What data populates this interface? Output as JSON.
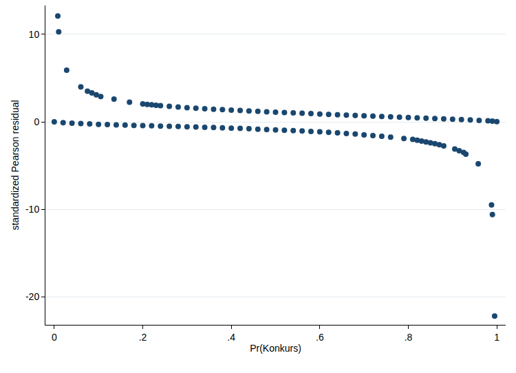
{
  "chart_data": {
    "type": "scatter",
    "xlabel": "Pr(Konkurs)",
    "ylabel": "standardized Pearson residual",
    "xlim": [
      -0.02,
      1.02
    ],
    "ylim": [
      -23.2,
      13.3
    ],
    "xticks": [
      0,
      {
        "value": 0.2,
        "label": ".2"
      },
      {
        "value": 0.4,
        "label": ".4"
      },
      {
        "value": 0.6,
        "label": ".6"
      },
      {
        "value": 0.8,
        "label": ".8"
      },
      1
    ],
    "yticks": [
      -20,
      -10,
      0,
      10
    ],
    "grid": true,
    "series": [
      {
        "color": "#1a476f",
        "marker": "circle",
        "x": [
          0.008,
          0.01,
          0.028,
          0.06,
          0.075,
          0.085,
          0.095,
          0.105,
          0.135,
          0.17,
          0.2,
          0.21,
          0.22,
          0.23,
          0.24,
          0.26,
          0.28,
          0.3,
          0.32,
          0.34,
          0.36,
          0.38,
          0.4,
          0.42,
          0.44,
          0.46,
          0.48,
          0.5,
          0.52,
          0.54,
          0.56,
          0.58,
          0.6,
          0.62,
          0.64,
          0.66,
          0.68,
          0.7,
          0.72,
          0.74,
          0.76,
          0.78,
          0.8,
          0.82,
          0.84,
          0.86,
          0.88,
          0.9,
          0.92,
          0.94,
          0.96,
          0.98,
          0.99,
          1.0
        ],
        "values": [
          12.1,
          10.3,
          5.9,
          4.0,
          3.5,
          3.3,
          3.1,
          2.9,
          2.6,
          2.25,
          2.05,
          2.0,
          1.95,
          1.9,
          1.85,
          1.78,
          1.7,
          1.62,
          1.56,
          1.5,
          1.45,
          1.4,
          1.35,
          1.3,
          1.25,
          1.2,
          1.15,
          1.1,
          1.06,
          1.02,
          0.98,
          0.94,
          0.9,
          0.86,
          0.82,
          0.78,
          0.74,
          0.7,
          0.66,
          0.62,
          0.58,
          0.54,
          0.5,
          0.46,
          0.42,
          0.38,
          0.34,
          0.3,
          0.26,
          0.22,
          0.17,
          0.12,
          0.08,
          0.03
        ]
      },
      {
        "color": "#1a476f",
        "marker": "circle",
        "x": [
          0.0,
          0.02,
          0.04,
          0.06,
          0.08,
          0.1,
          0.12,
          0.14,
          0.16,
          0.18,
          0.2,
          0.22,
          0.24,
          0.26,
          0.28,
          0.3,
          0.32,
          0.34,
          0.36,
          0.38,
          0.4,
          0.42,
          0.44,
          0.46,
          0.48,
          0.5,
          0.52,
          0.54,
          0.56,
          0.58,
          0.6,
          0.62,
          0.64,
          0.66,
          0.68,
          0.7,
          0.72,
          0.74,
          0.76,
          0.79,
          0.81,
          0.82,
          0.83,
          0.84,
          0.85,
          0.86,
          0.87,
          0.88,
          0.905,
          0.915,
          0.925,
          0.93,
          0.958,
          0.988,
          0.99,
          0.995
        ],
        "values": [
          0.0,
          -0.1,
          -0.15,
          -0.2,
          -0.24,
          -0.28,
          -0.31,
          -0.34,
          -0.37,
          -0.4,
          -0.42,
          -0.45,
          -0.48,
          -0.5,
          -0.53,
          -0.56,
          -0.59,
          -0.62,
          -0.65,
          -0.68,
          -0.72,
          -0.75,
          -0.79,
          -0.83,
          -0.87,
          -0.91,
          -0.95,
          -1.0,
          -1.04,
          -1.09,
          -1.14,
          -1.2,
          -1.26,
          -1.33,
          -1.4,
          -1.48,
          -1.56,
          -1.65,
          -1.75,
          -1.9,
          -2.0,
          -2.1,
          -2.2,
          -2.3,
          -2.4,
          -2.5,
          -2.6,
          -2.75,
          -3.1,
          -3.3,
          -3.5,
          -3.7,
          -4.8,
          -9.5,
          -10.6,
          -22.2
        ]
      }
    ]
  }
}
